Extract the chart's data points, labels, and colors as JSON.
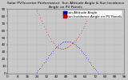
{
  "title": "Solar PV/Inverter Performance  Sun Altitude Angle & Sun Incidence Angle on PV Panels",
  "bg_color": "#c8c8c8",
  "plot_bg_color": "#c8c8c8",
  "grid_color": "#b0b0b0",
  "legend_labels": [
    "Sun Altitude Angle",
    "Sun Incidence Angle on PV Panels"
  ],
  "legend_colors": [
    "#0000cc",
    "#cc0000"
  ],
  "ylim": [
    0,
    90
  ],
  "xlim": [
    0,
    96
  ],
  "ytick_values": [
    0,
    10,
    20,
    30,
    40,
    50,
    60,
    70,
    80,
    90
  ],
  "xtick_values": [
    0,
    8,
    16,
    24,
    32,
    40,
    48,
    56,
    64,
    72,
    80,
    88,
    96
  ],
  "sun_alt_x": [
    24,
    25,
    26,
    27,
    28,
    29,
    30,
    31,
    32,
    33,
    34,
    35,
    36,
    37,
    38,
    39,
    40,
    41,
    42,
    43,
    44,
    45,
    46,
    47,
    48,
    49,
    50,
    51,
    52,
    53,
    54,
    55,
    56,
    57,
    58,
    59,
    60,
    61,
    62,
    63,
    64,
    65,
    66,
    67,
    68,
    69,
    70,
    71,
    72,
    73,
    74,
    75
  ],
  "sun_alt_y": [
    2,
    4,
    6,
    8,
    10,
    12,
    15,
    17,
    20,
    22,
    25,
    27,
    29,
    31,
    33,
    35,
    37,
    38,
    40,
    41,
    42,
    43,
    44,
    44,
    45,
    45,
    45,
    44,
    44,
    43,
    42,
    41,
    40,
    38,
    37,
    35,
    33,
    31,
    29,
    27,
    25,
    22,
    20,
    17,
    15,
    12,
    10,
    8,
    6,
    4,
    2,
    0
  ],
  "sun_inc_x": [
    24,
    25,
    26,
    27,
    28,
    29,
    30,
    31,
    32,
    33,
    34,
    35,
    36,
    37,
    38,
    39,
    40,
    41,
    42,
    43,
    44,
    45,
    46,
    47,
    48,
    49,
    50,
    51,
    52,
    53,
    54,
    55,
    56,
    57,
    58,
    59,
    60,
    61,
    62,
    63,
    64,
    65,
    66,
    67,
    68,
    69,
    70,
    71,
    72,
    73,
    74,
    75
  ],
  "sun_inc_y": [
    88,
    85,
    82,
    78,
    74,
    70,
    66,
    62,
    58,
    55,
    52,
    49,
    46,
    44,
    42,
    40,
    38,
    37,
    36,
    35,
    34,
    34,
    34,
    35,
    36,
    37,
    38,
    39,
    40,
    42,
    43,
    45,
    47,
    49,
    51,
    54,
    57,
    60,
    63,
    66,
    70,
    74,
    78,
    82,
    85,
    87,
    88,
    88,
    87,
    85,
    82,
    78
  ],
  "marker_size": 0.8,
  "title_fontsize": 3.2,
  "tick_fontsize": 3.0,
  "legend_fontsize": 3.0,
  "legend_marker_size": 3.0
}
